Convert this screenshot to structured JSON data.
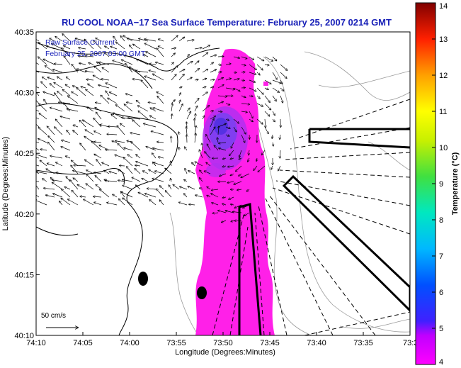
{
  "chart_data": {
    "type": "map",
    "title": "RU COOL  NOAA−17  Sea Surface Temperature:  February 25, 2007 0214 GMT",
    "annotation_lines": [
      "Raw Surface Current",
      "February 25, 2007 03:00 GMT"
    ],
    "xlabel": "Longitude (Degrees:Minutes)",
    "ylabel": "Latitude (Degrees:Minutes)",
    "x_ticks": [
      "74:10",
      "74:05",
      "74:00",
      "73:55",
      "73:50",
      "73:45",
      "73:40",
      "73:35",
      "73:30"
    ],
    "y_ticks": [
      "40:35",
      "40:30",
      "40:25",
      "40:20",
      "40:15",
      "40:10"
    ],
    "xlim_minutes": [
      -10,
      30
    ],
    "ylim_minutes": [
      10,
      35
    ],
    "scale_label": "50 cm/s",
    "colorbar": {
      "label": "Temperature (°C)",
      "min": 4,
      "max": 14,
      "ticks": [
        "14",
        "13",
        "12",
        "11",
        "10",
        "9",
        "8",
        "7",
        "6",
        "5",
        "4"
      ],
      "colormap": "jet-reversed-to-magenta"
    },
    "sst_patch": {
      "color_low": "#ff20e8",
      "color_cold_core": "#7a40f0",
      "approx_temperature_range_c": [
        4,
        5
      ]
    },
    "grid": false
  }
}
